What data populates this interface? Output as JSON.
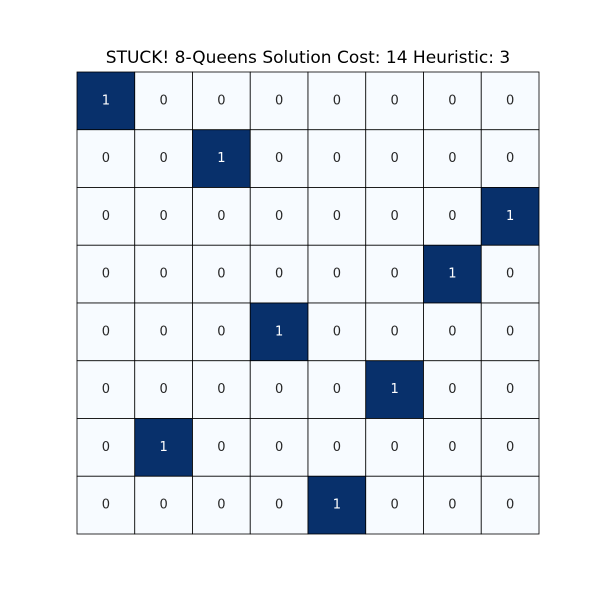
{
  "chart_data": {
    "type": "heatmap",
    "title": "STUCK! 8-Queens Solution Cost: 14 Heuristic: 3",
    "rows": 8,
    "cols": 8,
    "values": [
      [
        1,
        0,
        0,
        0,
        0,
        0,
        0,
        0
      ],
      [
        0,
        0,
        1,
        0,
        0,
        0,
        0,
        0
      ],
      [
        0,
        0,
        0,
        0,
        0,
        0,
        0,
        1
      ],
      [
        0,
        0,
        0,
        0,
        0,
        0,
        1,
        0
      ],
      [
        0,
        0,
        0,
        1,
        0,
        0,
        0,
        0
      ],
      [
        0,
        0,
        0,
        0,
        0,
        1,
        0,
        0
      ],
      [
        0,
        1,
        0,
        0,
        0,
        0,
        0,
        0
      ],
      [
        0,
        0,
        0,
        0,
        1,
        0,
        0,
        0
      ]
    ],
    "annotated": true,
    "colors": {
      "low": "#f7fbff",
      "high": "#08306b",
      "text_on_low": "#262626",
      "text_on_high": "#ffffff",
      "cell_border": "#000000"
    }
  }
}
